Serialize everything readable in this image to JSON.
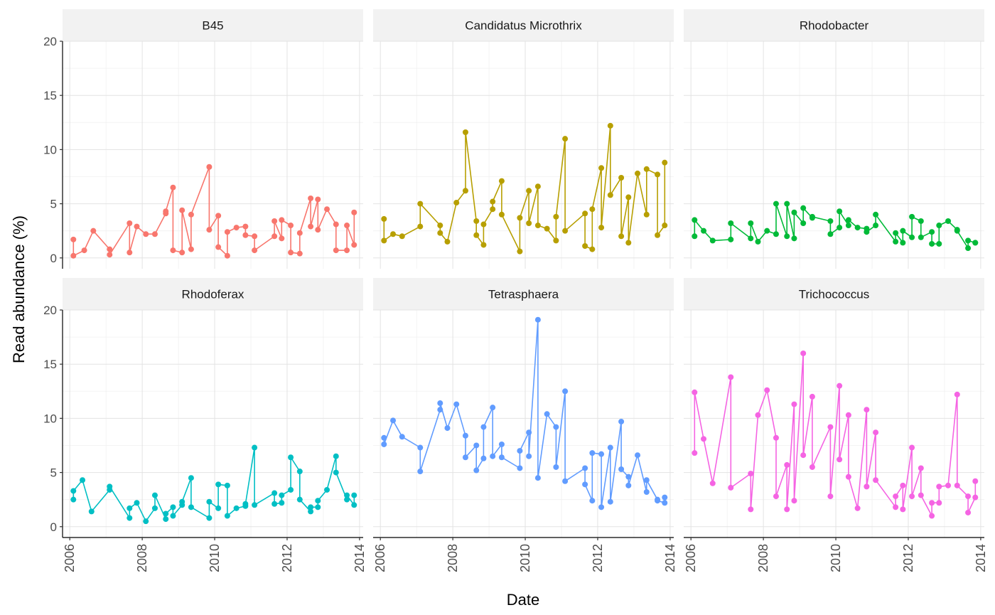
{
  "chart_data": {
    "type": "line",
    "xlabel": "Date",
    "ylabel": "Read abundance (%)",
    "xlim": [
      2005.8,
      2014.1
    ],
    "ylim": [
      -1,
      20
    ],
    "x_ticks": [
      2006,
      2008,
      2010,
      2012,
      2014
    ],
    "y_ticks": [
      0,
      5,
      10,
      15,
      20
    ],
    "grid": true,
    "layout": "facet_wrap 2 rows x 3 cols",
    "panels": [
      {
        "title": "B45",
        "color": "#F8766D",
        "points": [
          [
            2006.1,
            1.7
          ],
          [
            2006.1,
            0.2
          ],
          [
            2006.4,
            0.7
          ],
          [
            2006.65,
            2.5
          ],
          [
            2007.1,
            0.8
          ],
          [
            2007.1,
            0.3
          ],
          [
            2007.65,
            3.2
          ],
          [
            2007.65,
            0.5
          ],
          [
            2007.85,
            2.9
          ],
          [
            2008.1,
            2.2
          ],
          [
            2008.35,
            2.2
          ],
          [
            2008.65,
            4.1
          ],
          [
            2008.65,
            4.3
          ],
          [
            2008.85,
            6.5
          ],
          [
            2008.85,
            0.7
          ],
          [
            2009.1,
            0.5
          ],
          [
            2009.1,
            4.4
          ],
          [
            2009.35,
            0.8
          ],
          [
            2009.35,
            4.0
          ],
          [
            2009.85,
            8.4
          ],
          [
            2009.85,
            2.6
          ],
          [
            2010.1,
            3.9
          ],
          [
            2010.1,
            1.0
          ],
          [
            2010.35,
            0.2
          ],
          [
            2010.35,
            2.4
          ],
          [
            2010.6,
            2.8
          ],
          [
            2010.85,
            2.9
          ],
          [
            2010.85,
            2.1
          ],
          [
            2011.1,
            2.0
          ],
          [
            2011.1,
            0.7
          ],
          [
            2011.65,
            2.0
          ],
          [
            2011.65,
            3.4
          ],
          [
            2011.85,
            1.8
          ],
          [
            2011.85,
            3.5
          ],
          [
            2012.1,
            3.0
          ],
          [
            2012.1,
            0.5
          ],
          [
            2012.35,
            0.4
          ],
          [
            2012.35,
            2.3
          ],
          [
            2012.65,
            5.5
          ],
          [
            2012.65,
            2.9
          ],
          [
            2012.85,
            5.4
          ],
          [
            2012.85,
            2.6
          ],
          [
            2013.1,
            4.5
          ],
          [
            2013.35,
            3.1
          ],
          [
            2013.35,
            0.7
          ],
          [
            2013.65,
            0.7
          ],
          [
            2013.65,
            3.0
          ],
          [
            2013.85,
            1.2
          ],
          [
            2013.85,
            4.2
          ]
        ]
      },
      {
        "title": "Candidatus Microthrix",
        "color": "#B79F00",
        "points": [
          [
            2006.1,
            3.6
          ],
          [
            2006.1,
            1.6
          ],
          [
            2006.35,
            2.2
          ],
          [
            2006.6,
            2.0
          ],
          [
            2007.1,
            2.9
          ],
          [
            2007.1,
            5.0
          ],
          [
            2007.65,
            3.0
          ],
          [
            2007.65,
            2.3
          ],
          [
            2007.85,
            1.5
          ],
          [
            2008.1,
            5.1
          ],
          [
            2008.35,
            6.2
          ],
          [
            2008.35,
            11.6
          ],
          [
            2008.65,
            3.4
          ],
          [
            2008.65,
            2.1
          ],
          [
            2008.85,
            1.2
          ],
          [
            2008.85,
            3.1
          ],
          [
            2009.1,
            4.5
          ],
          [
            2009.1,
            5.2
          ],
          [
            2009.35,
            7.1
          ],
          [
            2009.35,
            4.0
          ],
          [
            2009.85,
            0.6
          ],
          [
            2009.85,
            3.7
          ],
          [
            2010.1,
            6.2
          ],
          [
            2010.1,
            3.2
          ],
          [
            2010.35,
            6.6
          ],
          [
            2010.35,
            3.0
          ],
          [
            2010.6,
            2.7
          ],
          [
            2010.85,
            1.6
          ],
          [
            2010.85,
            3.8
          ],
          [
            2011.1,
            11.0
          ],
          [
            2011.1,
            2.5
          ],
          [
            2011.65,
            4.1
          ],
          [
            2011.65,
            1.1
          ],
          [
            2011.85,
            0.8
          ],
          [
            2011.85,
            4.5
          ],
          [
            2012.1,
            8.3
          ],
          [
            2012.1,
            2.8
          ],
          [
            2012.35,
            12.2
          ],
          [
            2012.35,
            5.8
          ],
          [
            2012.65,
            7.4
          ],
          [
            2012.65,
            2.0
          ],
          [
            2012.85,
            5.6
          ],
          [
            2012.85,
            1.4
          ],
          [
            2013.1,
            7.8
          ],
          [
            2013.35,
            4.0
          ],
          [
            2013.35,
            8.2
          ],
          [
            2013.65,
            7.7
          ],
          [
            2013.65,
            2.1
          ],
          [
            2013.85,
            3.0
          ],
          [
            2013.85,
            8.8
          ]
        ]
      },
      {
        "title": "Rhodobacter",
        "color": "#00BA38",
        "points": [
          [
            2006.1,
            2.0
          ],
          [
            2006.1,
            3.5
          ],
          [
            2006.35,
            2.5
          ],
          [
            2006.6,
            1.6
          ],
          [
            2007.1,
            1.7
          ],
          [
            2007.1,
            3.2
          ],
          [
            2007.65,
            1.8
          ],
          [
            2007.65,
            3.2
          ],
          [
            2007.85,
            1.5
          ],
          [
            2008.1,
            2.5
          ],
          [
            2008.35,
            2.2
          ],
          [
            2008.35,
            5.0
          ],
          [
            2008.65,
            2.0
          ],
          [
            2008.65,
            5.0
          ],
          [
            2008.85,
            1.8
          ],
          [
            2008.85,
            4.2
          ],
          [
            2009.1,
            3.2
          ],
          [
            2009.1,
            4.6
          ],
          [
            2009.35,
            3.7
          ],
          [
            2009.35,
            3.8
          ],
          [
            2009.85,
            3.4
          ],
          [
            2009.85,
            2.2
          ],
          [
            2010.1,
            2.8
          ],
          [
            2010.1,
            4.3
          ],
          [
            2010.35,
            3.0
          ],
          [
            2010.35,
            3.5
          ],
          [
            2010.6,
            2.8
          ],
          [
            2010.85,
            2.7
          ],
          [
            2010.85,
            2.4
          ],
          [
            2011.1,
            3.0
          ],
          [
            2011.1,
            4.0
          ],
          [
            2011.65,
            1.5
          ],
          [
            2011.65,
            2.3
          ],
          [
            2011.85,
            1.4
          ],
          [
            2011.85,
            2.5
          ],
          [
            2012.1,
            1.9
          ],
          [
            2012.1,
            3.8
          ],
          [
            2012.35,
            3.4
          ],
          [
            2012.35,
            1.9
          ],
          [
            2012.65,
            2.4
          ],
          [
            2012.65,
            1.3
          ],
          [
            2012.85,
            1.3
          ],
          [
            2012.85,
            3.0
          ],
          [
            2013.1,
            3.4
          ],
          [
            2013.35,
            2.6
          ],
          [
            2013.35,
            2.5
          ],
          [
            2013.65,
            0.9
          ],
          [
            2013.65,
            1.6
          ],
          [
            2013.85,
            1.4
          ],
          [
            2013.85,
            1.4
          ]
        ]
      },
      {
        "title": "Rhodoferax",
        "color": "#00BFC4",
        "points": [
          [
            2006.1,
            2.5
          ],
          [
            2006.1,
            3.3
          ],
          [
            2006.35,
            4.3
          ],
          [
            2006.6,
            1.4
          ],
          [
            2007.1,
            3.4
          ],
          [
            2007.1,
            3.7
          ],
          [
            2007.65,
            0.8
          ],
          [
            2007.65,
            1.7
          ],
          [
            2007.85,
            2.2
          ],
          [
            2008.1,
            0.5
          ],
          [
            2008.35,
            1.7
          ],
          [
            2008.35,
            2.9
          ],
          [
            2008.65,
            0.7
          ],
          [
            2008.65,
            1.2
          ],
          [
            2008.85,
            1.8
          ],
          [
            2008.85,
            1.0
          ],
          [
            2009.1,
            2.0
          ],
          [
            2009.1,
            2.3
          ],
          [
            2009.35,
            4.5
          ],
          [
            2009.35,
            1.8
          ],
          [
            2009.85,
            0.8
          ],
          [
            2009.85,
            2.3
          ],
          [
            2010.1,
            1.7
          ],
          [
            2010.1,
            3.9
          ],
          [
            2010.35,
            3.8
          ],
          [
            2010.35,
            1.0
          ],
          [
            2010.6,
            1.7
          ],
          [
            2010.85,
            1.9
          ],
          [
            2010.85,
            2.1
          ],
          [
            2011.1,
            7.3
          ],
          [
            2011.1,
            2.0
          ],
          [
            2011.65,
            3.1
          ],
          [
            2011.65,
            2.1
          ],
          [
            2011.85,
            2.2
          ],
          [
            2011.85,
            2.9
          ],
          [
            2012.1,
            3.4
          ],
          [
            2012.1,
            6.4
          ],
          [
            2012.35,
            5.1
          ],
          [
            2012.35,
            2.5
          ],
          [
            2012.65,
            1.4
          ],
          [
            2012.65,
            1.8
          ],
          [
            2012.85,
            1.8
          ],
          [
            2012.85,
            2.4
          ],
          [
            2013.1,
            3.4
          ],
          [
            2013.35,
            6.5
          ],
          [
            2013.35,
            5.0
          ],
          [
            2013.65,
            2.5
          ],
          [
            2013.65,
            2.9
          ],
          [
            2013.85,
            2.0
          ],
          [
            2013.85,
            2.9
          ]
        ]
      },
      {
        "title": "Tetrasphaera",
        "color": "#619CFF",
        "points": [
          [
            2006.1,
            8.2
          ],
          [
            2006.1,
            7.6
          ],
          [
            2006.35,
            9.8
          ],
          [
            2006.6,
            8.3
          ],
          [
            2007.1,
            7.3
          ],
          [
            2007.1,
            5.1
          ],
          [
            2007.65,
            10.8
          ],
          [
            2007.65,
            11.4
          ],
          [
            2007.85,
            9.1
          ],
          [
            2008.1,
            11.3
          ],
          [
            2008.35,
            8.4
          ],
          [
            2008.35,
            6.4
          ],
          [
            2008.65,
            7.5
          ],
          [
            2008.65,
            5.2
          ],
          [
            2008.85,
            6.3
          ],
          [
            2008.85,
            9.2
          ],
          [
            2009.1,
            11.0
          ],
          [
            2009.1,
            6.5
          ],
          [
            2009.35,
            7.6
          ],
          [
            2009.35,
            6.4
          ],
          [
            2009.85,
            5.4
          ],
          [
            2009.85,
            7.0
          ],
          [
            2010.1,
            8.7
          ],
          [
            2010.1,
            6.5
          ],
          [
            2010.35,
            19.1
          ],
          [
            2010.35,
            4.5
          ],
          [
            2010.6,
            10.4
          ],
          [
            2010.85,
            9.2
          ],
          [
            2010.85,
            5.5
          ],
          [
            2011.1,
            12.5
          ],
          [
            2011.1,
            4.2
          ],
          [
            2011.65,
            5.4
          ],
          [
            2011.65,
            3.9
          ],
          [
            2011.85,
            2.4
          ],
          [
            2011.85,
            6.8
          ],
          [
            2012.1,
            6.7
          ],
          [
            2012.1,
            1.8
          ],
          [
            2012.35,
            7.3
          ],
          [
            2012.35,
            2.3
          ],
          [
            2012.65,
            9.7
          ],
          [
            2012.65,
            5.3
          ],
          [
            2012.85,
            4.6
          ],
          [
            2012.85,
            3.8
          ],
          [
            2013.1,
            6.6
          ],
          [
            2013.35,
            3.2
          ],
          [
            2013.35,
            4.3
          ],
          [
            2013.65,
            2.5
          ],
          [
            2013.65,
            2.4
          ],
          [
            2013.85,
            2.2
          ],
          [
            2013.85,
            2.7
          ]
        ]
      },
      {
        "title": "Trichococcus",
        "color": "#F564E3",
        "points": [
          [
            2006.1,
            6.8
          ],
          [
            2006.1,
            12.4
          ],
          [
            2006.35,
            8.1
          ],
          [
            2006.6,
            4.0
          ],
          [
            2007.1,
            13.8
          ],
          [
            2007.1,
            3.6
          ],
          [
            2007.65,
            4.9
          ],
          [
            2007.65,
            1.6
          ],
          [
            2007.85,
            10.3
          ],
          [
            2008.1,
            12.6
          ],
          [
            2008.35,
            8.2
          ],
          [
            2008.35,
            2.8
          ],
          [
            2008.65,
            5.7
          ],
          [
            2008.65,
            1.6
          ],
          [
            2008.85,
            11.3
          ],
          [
            2008.85,
            2.4
          ],
          [
            2009.1,
            16.0
          ],
          [
            2009.1,
            6.6
          ],
          [
            2009.35,
            12.0
          ],
          [
            2009.35,
            5.5
          ],
          [
            2009.85,
            9.2
          ],
          [
            2009.85,
            2.8
          ],
          [
            2010.1,
            13.0
          ],
          [
            2010.1,
            6.2
          ],
          [
            2010.35,
            10.3
          ],
          [
            2010.35,
            4.6
          ],
          [
            2010.6,
            1.7
          ],
          [
            2010.85,
            10.8
          ],
          [
            2010.85,
            3.7
          ],
          [
            2011.1,
            8.7
          ],
          [
            2011.1,
            4.3
          ],
          [
            2011.65,
            1.8
          ],
          [
            2011.65,
            2.8
          ],
          [
            2011.85,
            3.8
          ],
          [
            2011.85,
            1.6
          ],
          [
            2012.1,
            7.3
          ],
          [
            2012.1,
            2.8
          ],
          [
            2012.35,
            5.4
          ],
          [
            2012.35,
            2.9
          ],
          [
            2012.65,
            1.0
          ],
          [
            2012.65,
            2.2
          ],
          [
            2012.85,
            2.2
          ],
          [
            2012.85,
            3.7
          ],
          [
            2013.1,
            3.8
          ],
          [
            2013.35,
            12.2
          ],
          [
            2013.35,
            3.8
          ],
          [
            2013.65,
            2.8
          ],
          [
            2013.65,
            1.3
          ],
          [
            2013.85,
            2.7
          ],
          [
            2013.85,
            4.2
          ]
        ]
      }
    ]
  }
}
